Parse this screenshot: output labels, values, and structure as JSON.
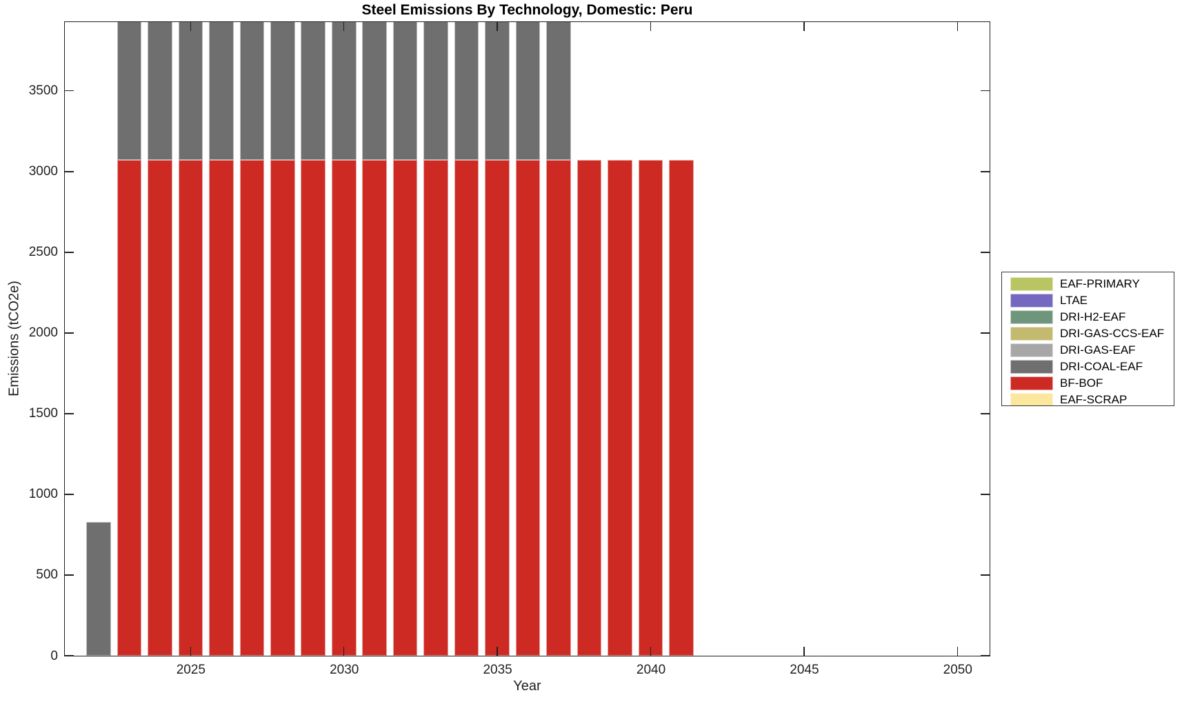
{
  "chart_data": {
    "type": "bar",
    "stacked": true,
    "clipped_at_top": true,
    "title": "Steel Emissions By Technology, Domestic: Peru",
    "xlabel": "Year",
    "ylabel": "Emissions (tCO2e)",
    "xlim": [
      2020.9,
      2051.05
    ],
    "ylim": [
      0,
      3926
    ],
    "xticks": [
      2025,
      2030,
      2035,
      2040,
      2045,
      2050
    ],
    "yticks": [
      0,
      500,
      1000,
      1500,
      2000,
      2500,
      3000,
      3500
    ],
    "bar_width_years": 0.8,
    "grid": false,
    "background": "#ffffff",
    "axis_color": "#1f1f1f",
    "legend_position": "right-outside",
    "legend": [
      {
        "label": "EAF-PRIMARY",
        "color": "#b9c463"
      },
      {
        "label": "LTAE",
        "color": "#7468c0"
      },
      {
        "label": "DRI-H2-EAF",
        "color": "#6f967d"
      },
      {
        "label": "DRI-GAS-CCS-EAF",
        "color": "#c3ba70"
      },
      {
        "label": "DRI-GAS-EAF",
        "color": "#a7a7a7"
      },
      {
        "label": "DRI-COAL-EAF",
        "color": "#6f6f6f"
      },
      {
        "label": "BF-BOF",
        "color": "#cd2a24"
      },
      {
        "label": "EAF-SCRAP",
        "color": "#fbe79e"
      }
    ],
    "years": [
      2022,
      2023,
      2024,
      2025,
      2026,
      2027,
      2028,
      2029,
      2030,
      2031,
      2032,
      2033,
      2034,
      2035,
      2036,
      2037,
      2038,
      2039,
      2040,
      2041
    ],
    "series": [
      {
        "name": "BF-BOF",
        "color": "#cd2a24",
        "values": [
          0,
          3070,
          3070,
          3070,
          3070,
          3070,
          3070,
          3070,
          3070,
          3070,
          3070,
          3070,
          3070,
          3070,
          3070,
          3070,
          3070,
          3070,
          3070,
          3070
        ]
      },
      {
        "name": "DRI-COAL-EAF",
        "color": "#6f6f6f",
        "values": [
          830,
          870,
          870,
          870,
          870,
          870,
          870,
          870,
          870,
          870,
          870,
          870,
          870,
          870,
          870,
          870,
          0,
          0,
          0,
          0
        ]
      }
    ]
  }
}
